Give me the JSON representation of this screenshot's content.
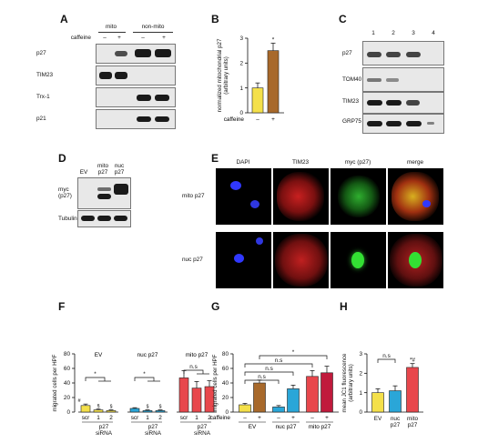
{
  "panel_letters": [
    "A",
    "B",
    "C",
    "D",
    "E",
    "F",
    "G",
    "H"
  ],
  "panel_a": {
    "groups": [
      "mito",
      "non-mito"
    ],
    "caffeine_label": "caffeine",
    "signs": [
      "–",
      "+",
      "–",
      "+"
    ],
    "rows": [
      "p27",
      "TIM23",
      "Trx-1",
      "p21"
    ]
  },
  "panel_c": {
    "lanes": [
      "1",
      "2",
      "3",
      "4"
    ],
    "rows": [
      "p27",
      "TOM40",
      "TIM23",
      "GRP75"
    ]
  },
  "panel_d": {
    "lanes": [
      "EV",
      "mito\np27",
      "nuc\np27"
    ],
    "rows": [
      "myc\n(p27)",
      "Tubulin"
    ]
  },
  "panel_e": {
    "columns": [
      "DAPI",
      "TIM23",
      "myc (p27)",
      "merge"
    ],
    "rows": [
      "mito p27",
      "nuc p27"
    ]
  },
  "colors": {
    "yellow": "#f4e04a",
    "brown": "#a8692b",
    "blue": "#2aa6d8",
    "red": "#e8474c",
    "crimson": "#c01a3c"
  },
  "chart_data": [
    {
      "panel": "B",
      "type": "bar",
      "ylabel": "normalized mitochondrial p27\n(arbitrary units)",
      "ylim": [
        0,
        3
      ],
      "yticks": [
        0,
        1,
        2,
        3
      ],
      "row_label": "caffeine",
      "categories": [
        "–",
        "+"
      ],
      "values": [
        1.0,
        2.5
      ],
      "errors": [
        0.2,
        0.3
      ],
      "bar_colors": [
        "#f4e04a",
        "#a8692b"
      ],
      "annotations": [
        "",
        "*"
      ]
    },
    {
      "panel": "F",
      "type": "bar",
      "ylabel": "migrated cells per HPF",
      "ylim": [
        0,
        80
      ],
      "yticks": [
        0,
        20,
        40,
        60,
        80
      ],
      "groups": [
        {
          "name": "EV",
          "ticks": [
            "scr",
            "1",
            "2"
          ],
          "values": [
            9,
            3,
            2
          ],
          "errors": [
            2,
            1,
            1
          ],
          "colors": [
            "#f4e04a",
            "#f4e04a",
            "#f4e04a"
          ],
          "marks": [
            "#",
            "§",
            "§"
          ],
          "bottom_label": "p27\nsiRNA"
        },
        {
          "name": "nuc p27",
          "ticks": [
            "scr",
            "1",
            "2"
          ],
          "values": [
            5,
            2,
            2
          ],
          "errors": [
            1,
            1,
            1
          ],
          "colors": [
            "#2aa6d8",
            "#2aa6d8",
            "#2aa6d8"
          ],
          "marks": [
            "",
            "§",
            "§"
          ],
          "bottom_label": "p27\nsiRNA"
        },
        {
          "name": "mito p27",
          "ticks": [
            "scr",
            "1",
            "2"
          ],
          "values": [
            47,
            33,
            35
          ],
          "errors": [
            10,
            9,
            8
          ],
          "colors": [
            "#e8474c",
            "#e8474c",
            "#e8474c"
          ],
          "marks": [
            "",
            "",
            ""
          ],
          "bottom_label": "p27\nsiRNA"
        }
      ],
      "significance": [
        "*",
        "*",
        "n.s"
      ]
    },
    {
      "panel": "G",
      "type": "bar",
      "ylabel": "migrated cells per HPF",
      "ylim": [
        0,
        80
      ],
      "yticks": [
        0,
        20,
        40,
        60,
        80
      ],
      "row_label": "caffeine",
      "groups": [
        {
          "name": "EV",
          "ticks": [
            "–",
            "+"
          ],
          "values": [
            10,
            40
          ],
          "errors": [
            2,
            4
          ],
          "colors": [
            "#f4e04a",
            "#a8692b"
          ]
        },
        {
          "name": "nuc p27",
          "ticks": [
            "–",
            "+"
          ],
          "values": [
            7,
            32
          ],
          "errors": [
            2,
            5
          ],
          "colors": [
            "#2aa6d8",
            "#2aa6d8"
          ]
        },
        {
          "name": "mito p27",
          "ticks": [
            "–",
            "+"
          ],
          "values": [
            49,
            54
          ],
          "errors": [
            8,
            9
          ],
          "colors": [
            "#e8474c",
            "#c01a3c"
          ]
        }
      ],
      "significance": [
        "*",
        "n.s",
        "n.s",
        "n.s"
      ]
    },
    {
      "panel": "H",
      "type": "bar",
      "ylabel": "mean JC1 fluorescence\n(arbitrary units)",
      "ylim": [
        0,
        3
      ],
      "yticks": [
        0,
        1,
        2,
        3
      ],
      "categories": [
        "EV",
        "nuc\np27",
        "mito\np27"
      ],
      "values": [
        1.0,
        1.1,
        2.3
      ],
      "errors": [
        0.2,
        0.25,
        0.2
      ],
      "bar_colors": [
        "#f4e04a",
        "#2aa6d8",
        "#e8474c"
      ],
      "annotations": [
        "",
        "",
        "*#"
      ],
      "significance": [
        "n.s"
      ]
    }
  ]
}
